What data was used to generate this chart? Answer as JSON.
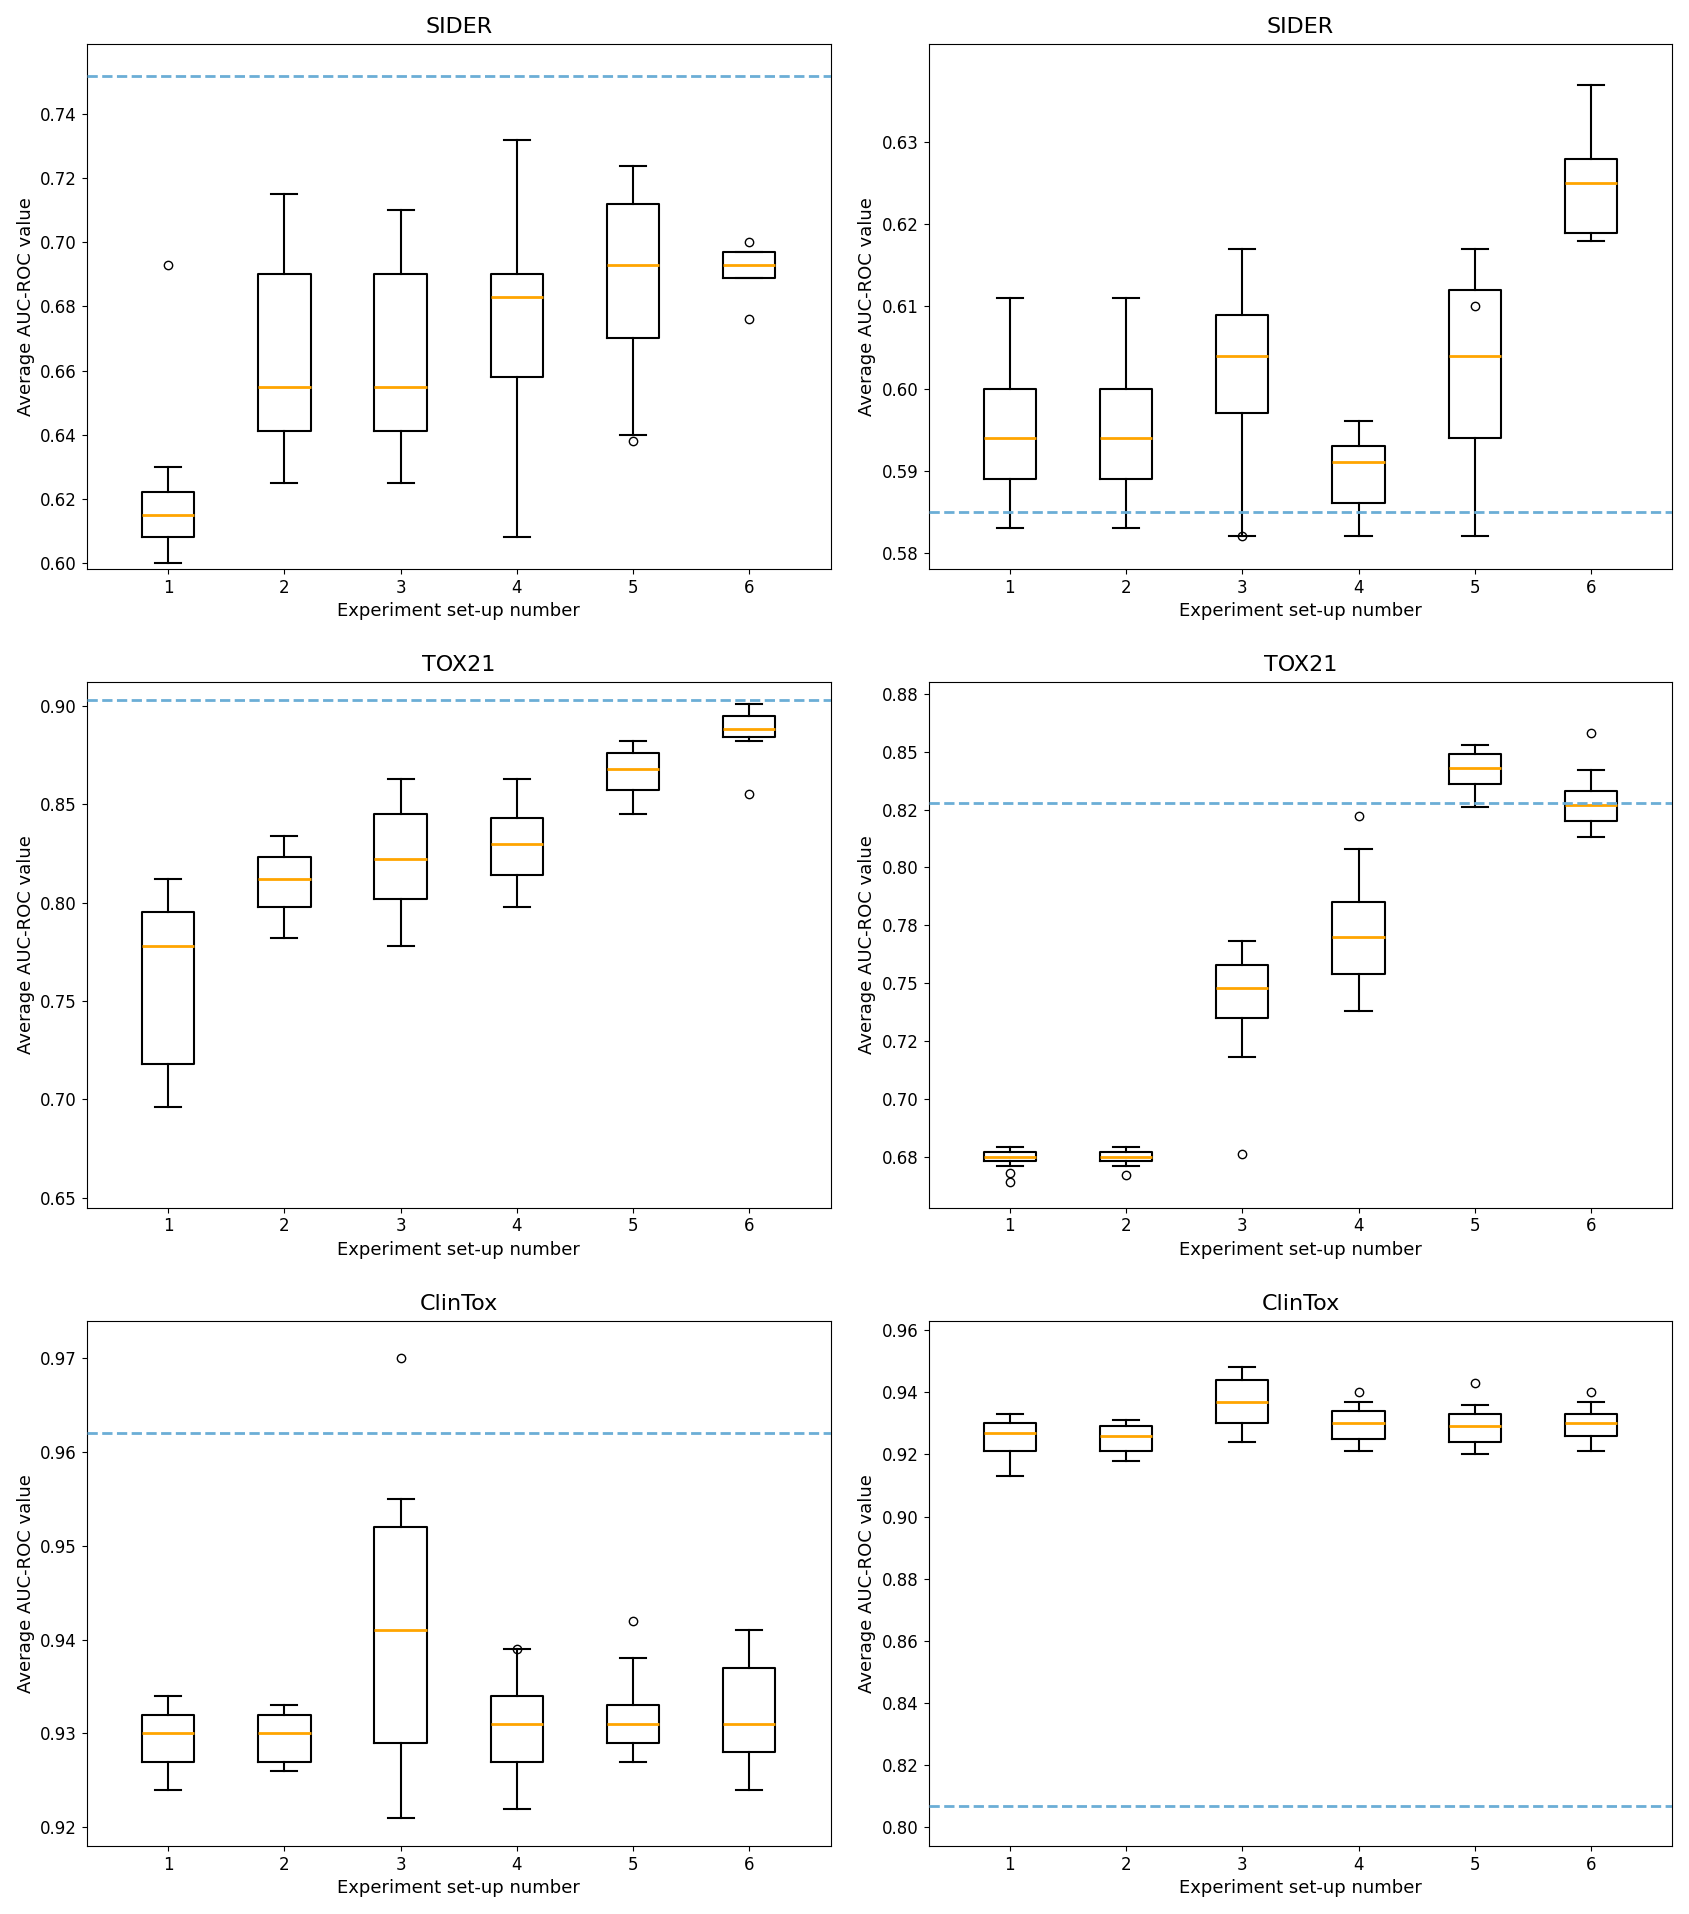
{
  "datasets": [
    "SIDER",
    "TOX21",
    "ClinTox"
  ],
  "n_experiments": 6,
  "xlabel": "Experiment set-up number",
  "ylabel": "Average AUC-ROC value",
  "train": {
    "SIDER": {
      "ylim": [
        0.598,
        0.762
      ],
      "yticks": [
        0.6,
        0.62,
        0.64,
        0.66,
        0.68,
        0.7,
        0.72,
        0.74
      ],
      "dashed_line": 0.752,
      "boxes": [
        {
          "med": 0.615,
          "q1": 0.608,
          "q3": 0.622,
          "whislo": 0.6,
          "whishi": 0.63,
          "fliers": [
            0.693
          ]
        },
        {
          "med": 0.655,
          "q1": 0.641,
          "q3": 0.69,
          "whislo": 0.625,
          "whishi": 0.715,
          "fliers": []
        },
        {
          "med": 0.655,
          "q1": 0.641,
          "q3": 0.69,
          "whislo": 0.625,
          "whishi": 0.71,
          "fliers": []
        },
        {
          "med": 0.683,
          "q1": 0.658,
          "q3": 0.69,
          "whislo": 0.608,
          "whishi": 0.732,
          "fliers": []
        },
        {
          "med": 0.693,
          "q1": 0.67,
          "q3": 0.712,
          "whislo": 0.64,
          "whishi": 0.724,
          "fliers": [
            0.638
          ]
        },
        {
          "med": 0.693,
          "q1": 0.689,
          "q3": 0.697,
          "whislo": 0.689,
          "whishi": 0.697,
          "fliers": [
            0.7,
            0.676
          ]
        }
      ]
    },
    "TOX21": {
      "ylim": [
        0.645,
        0.912
      ],
      "yticks": [
        0.65,
        0.7,
        0.75,
        0.8,
        0.85,
        0.9
      ],
      "dashed_line": 0.903,
      "boxes": [
        {
          "med": 0.778,
          "q1": 0.718,
          "q3": 0.795,
          "whislo": 0.696,
          "whishi": 0.812,
          "fliers": []
        },
        {
          "med": 0.812,
          "q1": 0.798,
          "q3": 0.823,
          "whislo": 0.782,
          "whishi": 0.834,
          "fliers": []
        },
        {
          "med": 0.822,
          "q1": 0.802,
          "q3": 0.845,
          "whislo": 0.778,
          "whishi": 0.863,
          "fliers": []
        },
        {
          "med": 0.83,
          "q1": 0.814,
          "q3": 0.843,
          "whislo": 0.798,
          "whishi": 0.863,
          "fliers": []
        },
        {
          "med": 0.868,
          "q1": 0.857,
          "q3": 0.876,
          "whislo": 0.845,
          "whishi": 0.882,
          "fliers": []
        },
        {
          "med": 0.888,
          "q1": 0.884,
          "q3": 0.895,
          "whislo": 0.882,
          "whishi": 0.901,
          "fliers": [
            0.855
          ]
        }
      ]
    },
    "ClinTox": {
      "ylim": [
        0.918,
        0.974
      ],
      "yticks": [
        0.92,
        0.93,
        0.94,
        0.95,
        0.96,
        0.97
      ],
      "dashed_line": 0.962,
      "boxes": [
        {
          "med": 0.93,
          "q1": 0.927,
          "q3": 0.932,
          "whislo": 0.924,
          "whishi": 0.934,
          "fliers": []
        },
        {
          "med": 0.93,
          "q1": 0.927,
          "q3": 0.932,
          "whislo": 0.926,
          "whishi": 0.933,
          "fliers": []
        },
        {
          "med": 0.941,
          "q1": 0.929,
          "q3": 0.952,
          "whislo": 0.921,
          "whishi": 0.955,
          "fliers": [
            0.97
          ]
        },
        {
          "med": 0.931,
          "q1": 0.927,
          "q3": 0.934,
          "whislo": 0.922,
          "whishi": 0.939,
          "fliers": [
            0.939
          ]
        },
        {
          "med": 0.931,
          "q1": 0.929,
          "q3": 0.933,
          "whislo": 0.927,
          "whishi": 0.938,
          "fliers": [
            0.942
          ]
        },
        {
          "med": 0.931,
          "q1": 0.928,
          "q3": 0.937,
          "whislo": 0.924,
          "whishi": 0.941,
          "fliers": []
        }
      ]
    }
  },
  "test": {
    "SIDER": {
      "ylim": [
        0.578,
        0.642
      ],
      "yticks": [
        0.58,
        0.59,
        0.6,
        0.61,
        0.62,
        0.63
      ],
      "dashed_line": 0.585,
      "boxes": [
        {
          "med": 0.594,
          "q1": 0.589,
          "q3": 0.6,
          "whislo": 0.583,
          "whishi": 0.611,
          "fliers": []
        },
        {
          "med": 0.594,
          "q1": 0.589,
          "q3": 0.6,
          "whislo": 0.583,
          "whishi": 0.611,
          "fliers": []
        },
        {
          "med": 0.604,
          "q1": 0.597,
          "q3": 0.609,
          "whislo": 0.582,
          "whishi": 0.617,
          "fliers": [
            0.582
          ]
        },
        {
          "med": 0.591,
          "q1": 0.586,
          "q3": 0.593,
          "whislo": 0.582,
          "whishi": 0.596,
          "fliers": []
        },
        {
          "med": 0.604,
          "q1": 0.594,
          "q3": 0.612,
          "whislo": 0.582,
          "whishi": 0.617,
          "fliers": [
            0.61
          ]
        },
        {
          "med": 0.625,
          "q1": 0.619,
          "q3": 0.628,
          "whislo": 0.618,
          "whishi": 0.637,
          "fliers": []
        }
      ]
    },
    "TOX21": {
      "ylim": [
        0.653,
        0.88
      ],
      "yticks": [
        0.675,
        0.7,
        0.725,
        0.75,
        0.775,
        0.8,
        0.825,
        0.85,
        0.875
      ],
      "dashed_line": 0.828,
      "boxes": [
        {
          "med": 0.675,
          "q1": 0.673,
          "q3": 0.677,
          "whislo": 0.671,
          "whishi": 0.679,
          "fliers": [
            0.668,
            0.664
          ]
        },
        {
          "med": 0.675,
          "q1": 0.673,
          "q3": 0.677,
          "whislo": 0.671,
          "whishi": 0.679,
          "fliers": [
            0.667
          ]
        },
        {
          "med": 0.748,
          "q1": 0.735,
          "q3": 0.758,
          "whislo": 0.718,
          "whishi": 0.768,
          "fliers": [
            0.676
          ]
        },
        {
          "med": 0.77,
          "q1": 0.754,
          "q3": 0.785,
          "whislo": 0.738,
          "whishi": 0.808,
          "fliers": [
            0.822
          ]
        },
        {
          "med": 0.843,
          "q1": 0.836,
          "q3": 0.849,
          "whislo": 0.826,
          "whishi": 0.853,
          "fliers": []
        },
        {
          "med": 0.827,
          "q1": 0.82,
          "q3": 0.833,
          "whislo": 0.813,
          "whishi": 0.842,
          "fliers": [
            0.858
          ]
        }
      ]
    },
    "ClinTox": {
      "ylim": [
        0.794,
        0.963
      ],
      "yticks": [
        0.8,
        0.82,
        0.84,
        0.86,
        0.88,
        0.9,
        0.92,
        0.94,
        0.96
      ],
      "dashed_line": 0.807,
      "boxes": [
        {
          "med": 0.927,
          "q1": 0.921,
          "q3": 0.93,
          "whislo": 0.913,
          "whishi": 0.933,
          "fliers": []
        },
        {
          "med": 0.926,
          "q1": 0.921,
          "q3": 0.929,
          "whislo": 0.918,
          "whishi": 0.931,
          "fliers": []
        },
        {
          "med": 0.937,
          "q1": 0.93,
          "q3": 0.944,
          "whislo": 0.924,
          "whishi": 0.948,
          "fliers": []
        },
        {
          "med": 0.93,
          "q1": 0.925,
          "q3": 0.934,
          "whislo": 0.921,
          "whishi": 0.937,
          "fliers": [
            0.94
          ]
        },
        {
          "med": 0.929,
          "q1": 0.924,
          "q3": 0.933,
          "whislo": 0.92,
          "whishi": 0.936,
          "fliers": [
            0.943
          ]
        },
        {
          "med": 0.93,
          "q1": 0.926,
          "q3": 0.933,
          "whislo": 0.921,
          "whishi": 0.937,
          "fliers": [
            0.94
          ]
        }
      ]
    }
  },
  "median_color": "#FFA500",
  "box_color": "black",
  "whisker_color": "black",
  "flier_color": "black",
  "dashed_color": "#6BAED6",
  "background_color": "white",
  "title_fontsize": 16,
  "label_fontsize": 13,
  "tick_fontsize": 12,
  "figwidth": 16.89,
  "figheight": 19.14,
  "dpi": 100
}
